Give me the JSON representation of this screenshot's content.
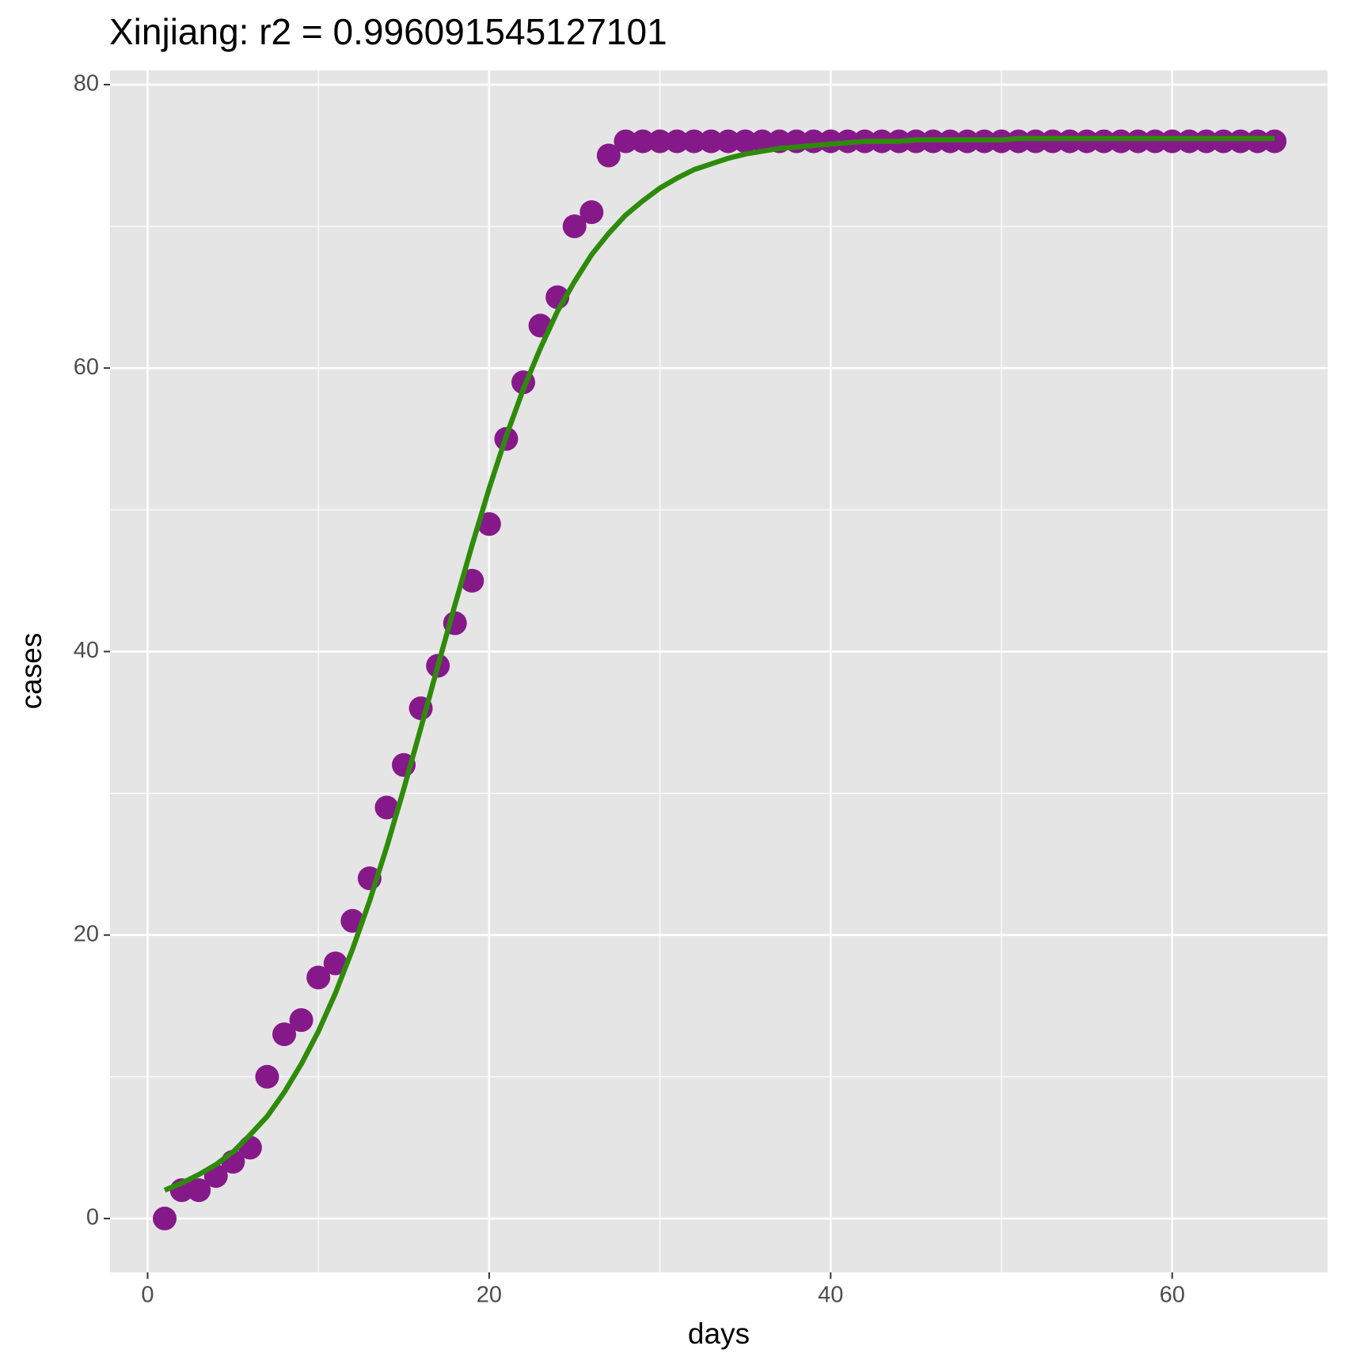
{
  "chart_data": {
    "type": "scatter",
    "title": "Xinjiang: r2 = 0.996091545127101",
    "x_label": "days",
    "y_label": "cases",
    "x": [
      1,
      2,
      3,
      4,
      5,
      6,
      7,
      8,
      9,
      10,
      11,
      12,
      13,
      14,
      15,
      16,
      17,
      18,
      19,
      20,
      21,
      22,
      23,
      24,
      25,
      26,
      27,
      28,
      29,
      30,
      31,
      32,
      33,
      34,
      35,
      36,
      37,
      38,
      39,
      40,
      41,
      42,
      43,
      44,
      45,
      46,
      47,
      48,
      49,
      50,
      51,
      52,
      53,
      54,
      55,
      56,
      57,
      58,
      59,
      60,
      61,
      62,
      63,
      64,
      65,
      66
    ],
    "series": [
      {
        "mark": "point",
        "color": "#86198a",
        "values": [
          0,
          2,
          2,
          3,
          4,
          5,
          10,
          13,
          14,
          17,
          18,
          21,
          24,
          29,
          32,
          36,
          39,
          42,
          45,
          49,
          55,
          59,
          63,
          65,
          70,
          71,
          75,
          76,
          76,
          76,
          76,
          76,
          76,
          76,
          76,
          76,
          76,
          76,
          76,
          76,
          76,
          76,
          76,
          76,
          76,
          76,
          76,
          76,
          76,
          76,
          76,
          76,
          76,
          76,
          76,
          76,
          76,
          76,
          76,
          76,
          76,
          76,
          76,
          76,
          76,
          76
        ]
      },
      {
        "mark": "line",
        "color": "#2e8b0a",
        "values": [
          2.0,
          2.5,
          3.1,
          3.8,
          4.7,
          5.9,
          7.2,
          8.9,
          10.9,
          13.2,
          15.9,
          19.0,
          22.4,
          26.2,
          30.3,
          34.6,
          39.0,
          43.3,
          47.5,
          51.5,
          55.2,
          58.5,
          61.4,
          64.0,
          66.1,
          68.0,
          69.5,
          70.8,
          71.8,
          72.7,
          73.4,
          74.0,
          74.4,
          74.8,
          75.1,
          75.3,
          75.5,
          75.6,
          75.7,
          75.8,
          75.9,
          76.0,
          76.0,
          76.0,
          76.1,
          76.1,
          76.1,
          76.1,
          76.1,
          76.1,
          76.2,
          76.2,
          76.2,
          76.2,
          76.2,
          76.2,
          76.2,
          76.2,
          76.2,
          76.2,
          76.2,
          76.2,
          76.2,
          76.2,
          76.2,
          76.2
        ]
      }
    ],
    "xlim": [
      -2.2,
      69.1
    ],
    "ylim": [
      -3.8,
      81
    ],
    "xticks": [
      0,
      20,
      40,
      60
    ],
    "yticks": [
      0,
      20,
      40,
      60,
      80
    ],
    "xminor_ticks": [
      10,
      30,
      50
    ],
    "yminor_ticks": [
      10,
      30,
      50,
      70
    ],
    "grid": true,
    "panel_color": "#e5e5e5"
  }
}
